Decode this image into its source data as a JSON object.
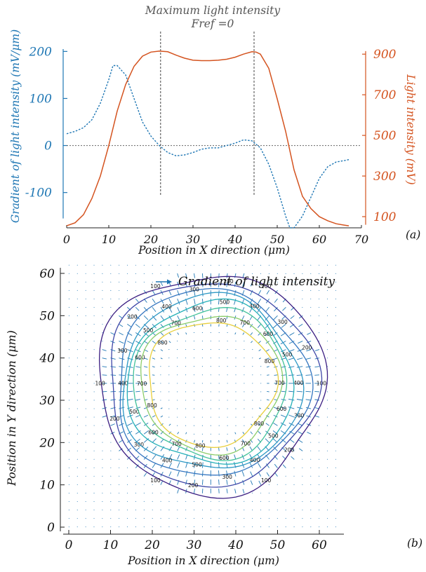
{
  "chart_data": [
    {
      "type": "line",
      "panel_label": "(a)",
      "annotation": {
        "line1": "Maximum light intensity",
        "line2": "Fref =0"
      },
      "xlabel": "Position in X direction (μm)",
      "ylabel_left": "Gradient of light intensity (mV/μm)",
      "ylabel_right": "Light intensity (mV)",
      "x_ticks": [
        "0",
        "10",
        "20",
        "30",
        "40",
        "50",
        "60",
        "70"
      ],
      "left_ticks": [
        "200",
        "100",
        "0",
        "-100"
      ],
      "right_ticks": [
        "900",
        "700",
        "500",
        "300",
        "100"
      ],
      "xlim": [
        0,
        70
      ],
      "ylim_left": [
        -175,
        205
      ],
      "ylim_right": [
        45,
        925
      ],
      "colors": {
        "gradient": "#1f77b4",
        "intensity": "#d4531f",
        "annotation": "#444444"
      },
      "zero_line": 0,
      "marker_x": [
        22.3,
        44.5
      ],
      "series": [
        {
          "axis": "left",
          "style": "dotted",
          "x": [
            0,
            2,
            4,
            6,
            8,
            10,
            11,
            12,
            14,
            16,
            18,
            20,
            22,
            24,
            26,
            28,
            30,
            32,
            34,
            36,
            38,
            40,
            42,
            44,
            46,
            48,
            50,
            52,
            53,
            54,
            56,
            58,
            60,
            62,
            64,
            66,
            67
          ],
          "y": [
            25,
            30,
            38,
            55,
            90,
            140,
            170,
            170,
            150,
            100,
            50,
            20,
            0,
            -15,
            -22,
            -20,
            -15,
            -8,
            -5,
            -5,
            0,
            5,
            12,
            10,
            -5,
            -40,
            -90,
            -150,
            -175,
            -175,
            -150,
            -110,
            -70,
            -45,
            -35,
            -32,
            -30
          ]
        },
        {
          "axis": "right",
          "x": [
            0,
            2,
            4,
            6,
            8,
            10,
            12,
            14,
            16,
            18,
            20,
            22,
            24,
            26,
            28,
            30,
            32,
            34,
            36,
            38,
            40,
            42,
            44,
            45,
            46,
            48,
            50,
            52,
            54,
            56,
            58,
            60,
            62,
            64,
            66,
            67
          ],
          "y": [
            55,
            70,
            110,
            190,
            300,
            450,
            620,
            750,
            840,
            890,
            910,
            915,
            912,
            895,
            880,
            870,
            868,
            868,
            870,
            875,
            885,
            900,
            912,
            910,
            900,
            830,
            680,
            520,
            330,
            200,
            140,
            100,
            80,
            65,
            58,
            55
          ]
        }
      ]
    },
    {
      "type": "contour",
      "panel_label": "(b)",
      "legend": "Gradient of light intensity",
      "xlabel": "Position in X direction (μm)",
      "ylabel": "Position in Y direction (μm)",
      "x_ticks": [
        "0",
        "10",
        "20",
        "30",
        "40",
        "50",
        "60"
      ],
      "y_ticks": [
        "60",
        "50",
        "40",
        "30",
        "20",
        "10",
        "0"
      ],
      "xlim": [
        -1,
        65
      ],
      "ylim": [
        -1,
        64
      ],
      "center": [
        34,
        34
      ],
      "contour_levels": [
        100,
        200,
        300,
        400,
        500,
        600,
        700,
        800
      ],
      "contour_radii": [
        26.5,
        24.5,
        22.5,
        21.0,
        19.5,
        18.0,
        16.5,
        15.0
      ],
      "level_colors": [
        "#3b1e82",
        "#3f48a8",
        "#3576c0",
        "#2d98c4",
        "#25b0b8",
        "#43c29a",
        "#8ccd6a",
        "#e8cf3c"
      ],
      "arrow_color": "#1f77b4"
    }
  ]
}
